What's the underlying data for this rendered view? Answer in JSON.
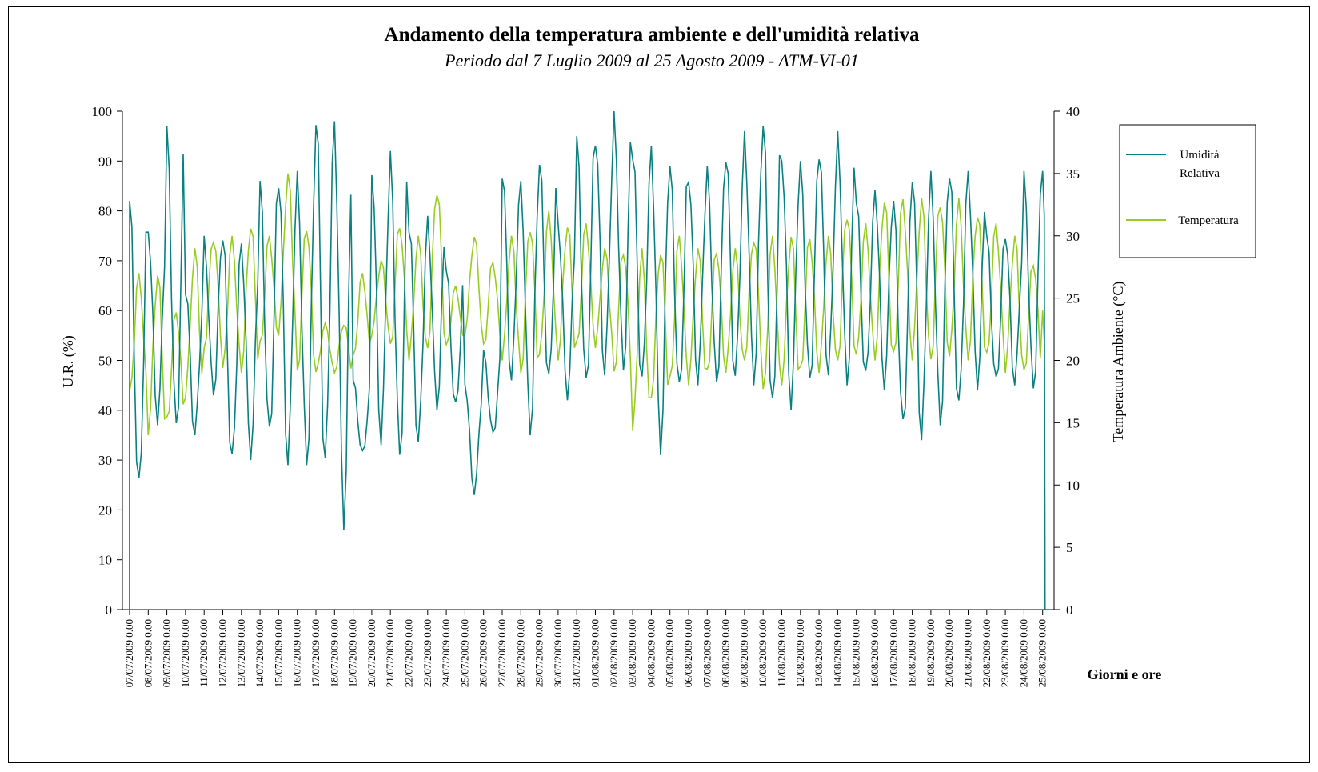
{
  "chart_data": {
    "type": "line",
    "title": "Andamento della temperatura ambiente e dell'umidità relativa",
    "subtitle": "Periodo dal 7 Luglio 2009 al 25 Agosto 2009 - ATM-VI-01",
    "xlabel": "Giorni e ore",
    "ylabel_left": "U.R. (%)",
    "ylabel_right": "Temperatura Ambiente (°C)",
    "ylim_left": [
      0,
      100
    ],
    "ylim_right": [
      0,
      40
    ],
    "yticks_left": [
      0,
      10,
      20,
      30,
      40,
      50,
      60,
      70,
      80,
      90,
      100
    ],
    "yticks_right": [
      0,
      5,
      10,
      15,
      20,
      25,
      30,
      35,
      40
    ],
    "grid": false,
    "legend_position": "right",
    "categories": [
      "07/07/2009 0.00",
      "08/07/2009 0.00",
      "09/07/2009 0.00",
      "10/07/2009 0.00",
      "11/07/2009 0.00",
      "12/07/2009 0.00",
      "13/07/2009 0.00",
      "14/07/2009 0.00",
      "15/07/2009 0.00",
      "16/07/2009 0.00",
      "17/07/2009 0.00",
      "18/07/2009 0.00",
      "19/07/2009 0.00",
      "20/07/2009 0.00",
      "21/07/2009 0.00",
      "22/07/2009 0.00",
      "23/07/2009 0.00",
      "24/07/2009 0.00",
      "25/07/2009 0.00",
      "26/07/2009 0.00",
      "27/07/2009 0.00",
      "28/07/2009 0.00",
      "29/07/2009 0.00",
      "30/07/2009 0.00",
      "31/07/2009 0.00",
      "01/08/2009 0.00",
      "02/08/2009 0.00",
      "03/08/2009 0.00",
      "04/08/2009 0.00",
      "05/08/2009 0.00",
      "06/08/2009 0.00",
      "07/08/2009 0.00",
      "08/08/2009 0.00",
      "09/08/2009 0.00",
      "10/08/2009 0.00",
      "11/08/2009 0.00",
      "12/08/2009 0.00",
      "13/08/2009 0.00",
      "14/08/2009 0.00",
      "15/08/2009 0.00",
      "16/08/2009 0.00",
      "17/08/2009 0.00",
      "18/08/2009 0.00",
      "19/08/2009 0.00",
      "20/08/2009 0.00",
      "21/08/2009 0.00",
      "22/08/2009 0.00",
      "23/08/2009 0.00",
      "24/08/2009 0.00",
      "25/08/2009 0.00"
    ],
    "series": [
      {
        "name": "Umidità Relativa",
        "axis": "left",
        "color": "#0a8080",
        "daily_min": [
          23,
          37,
          35,
          35,
          43,
          29,
          30,
          34,
          29,
          29,
          28,
          16,
          31,
          33,
          30,
          33,
          40,
          40,
          23,
          35,
          46,
          35,
          45,
          42,
          44,
          47,
          48,
          45,
          31,
          43,
          45,
          45,
          46,
          45,
          39,
          40,
          45,
          47,
          45,
          46,
          44,
          36,
          34,
          37,
          40,
          44,
          45,
          45,
          44,
          0
        ],
        "daily_max": [
          82,
          77,
          97,
          65,
          75,
          75,
          74,
          86,
          88,
          88,
          100,
          98,
          46,
          90,
          92,
          78,
          79,
          68,
          46,
          52,
          89,
          86,
          90,
          78,
          95,
          96,
          100,
          92,
          93,
          89,
          88,
          89,
          92,
          96,
          97,
          92,
          90,
          93,
          96,
          82,
          85,
          82,
          89,
          88,
          88,
          88,
          75,
          76,
          88,
          88
        ]
      },
      {
        "name": "Temperatura",
        "axis": "right",
        "color": "#99cc22",
        "daily_min": [
          17,
          14,
          15,
          17,
          21,
          19,
          19,
          21,
          22,
          19,
          19,
          19,
          20,
          22,
          21,
          20,
          21,
          21,
          22,
          21,
          20,
          19,
          20,
          20,
          21,
          21,
          19,
          14,
          17,
          18,
          18,
          19,
          19,
          20,
          17,
          18,
          19,
          19,
          20,
          20,
          20,
          20,
          20,
          20,
          20,
          20,
          20,
          19,
          19,
          0
        ],
        "daily_max": [
          27,
          27,
          24,
          29,
          30,
          30,
          31,
          30,
          35,
          31,
          23,
          23,
          27,
          28,
          31,
          30,
          34,
          26,
          30,
          28,
          30,
          31,
          32,
          31,
          31,
          29,
          29,
          29,
          29,
          30,
          29,
          29,
          29,
          30,
          30,
          30,
          30,
          30,
          32,
          31,
          33,
          33,
          33,
          33,
          33,
          32,
          31,
          30,
          28,
          24
        ]
      }
    ]
  }
}
